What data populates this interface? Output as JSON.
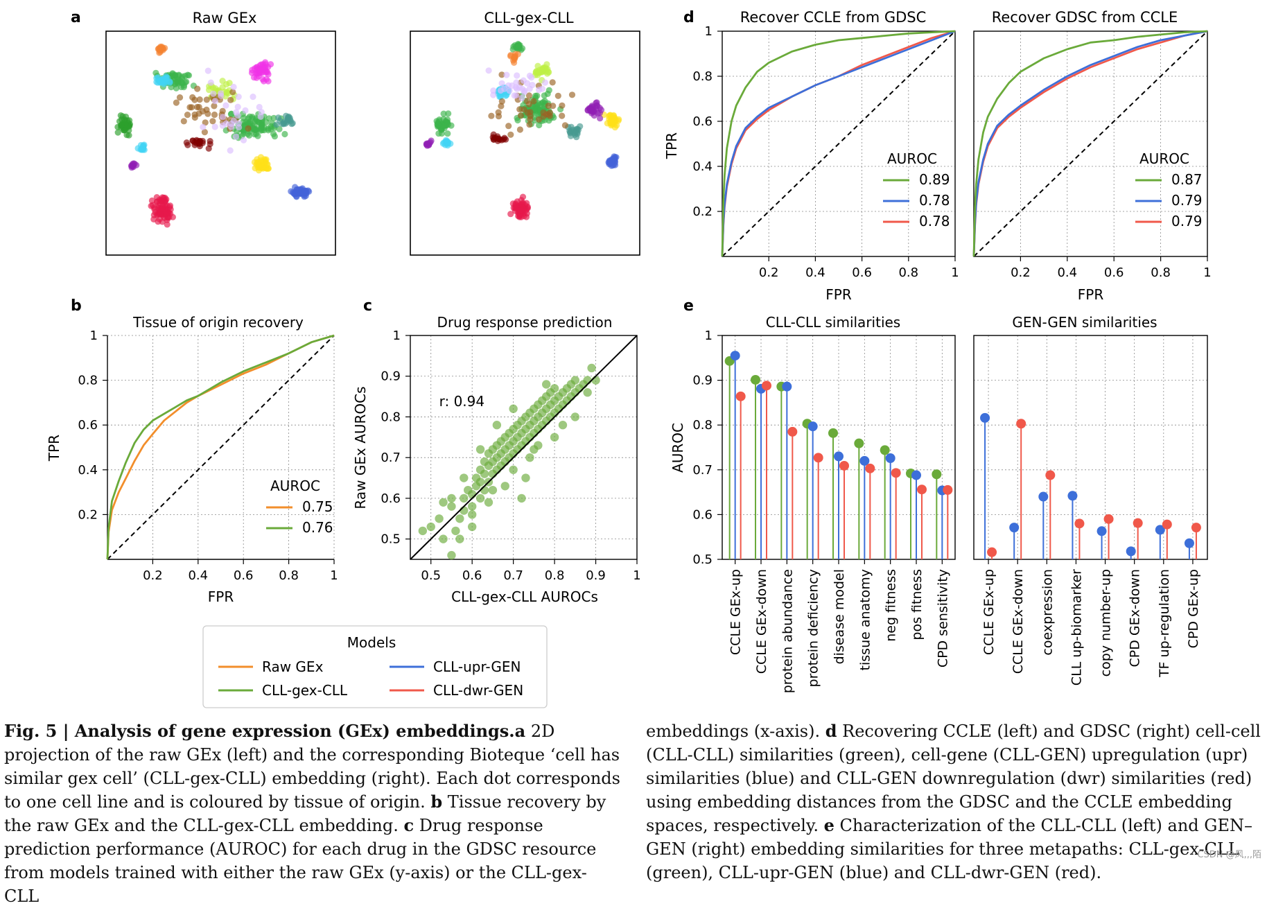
{
  "colors": {
    "raw": "#f28e2b",
    "cll": "#6aaa3a",
    "upr": "#3d6fd9",
    "dwr": "#f0584a",
    "tissue": [
      "#e6194b",
      "#3cb44b",
      "#4363d8",
      "#f58231",
      "#911eb4",
      "#42d4f4",
      "#f032e6",
      "#bfef45",
      "#469990",
      "#9a6324",
      "#ffe119",
      "#800000",
      "#008080",
      "#dcbeff",
      "#000075",
      "#2ca02c"
    ]
  },
  "panel_a": {
    "label": "a",
    "left_title": "Raw GEx",
    "right_title": "CLL-gex-CLL"
  },
  "panel_b": {
    "label": "b",
    "title": "Tissue of origin recovery",
    "xlabel": "FPR",
    "ylabel": "TPR",
    "legend_title": "AUROC",
    "legend": [
      "0.75",
      "0.76"
    ]
  },
  "panel_c": {
    "label": "c",
    "title": "Drug response prediction",
    "xlabel": "CLL-gex-CLL AUROCs",
    "ylabel": "Raw GEx AUROCs",
    "annotation": "r: 0.94"
  },
  "panel_d": {
    "label": "d",
    "left_title": "Recover CCLE from GDSC",
    "right_title": "Recover GDSC from CCLE",
    "xlabel": "FPR",
    "ylabel": "TPR",
    "legend_title": "AUROC",
    "left_legend": [
      "0.89",
      "0.78",
      "0.78"
    ],
    "right_legend": [
      "0.87",
      "0.79",
      "0.79"
    ]
  },
  "panel_e": {
    "label": "e",
    "left_title": "CLL-CLL similarities",
    "right_title": "GEN-GEN similarities",
    "ylabel": "AUROC"
  },
  "models_legend": {
    "title": "Models",
    "items": [
      "Raw GEx",
      "CLL-gex-CLL",
      "CLL-upr-GEN",
      "CLL-dwr-GEN"
    ]
  },
  "chart_data": [
    {
      "type": "scatter",
      "name": "Raw GEx projection",
      "title": "Raw GEx",
      "description": "2D projection, points coloured by tissue of origin; axes unlabeled"
    },
    {
      "type": "scatter",
      "name": "CLL-gex-CLL projection",
      "title": "CLL-gex-CLL"
    },
    {
      "type": "line",
      "title": "Tissue of origin recovery",
      "xlabel": "FPR",
      "ylabel": "TPR",
      "xlim": [
        0,
        1
      ],
      "ylim": [
        0,
        1
      ],
      "xticks": [
        "0.2",
        "0.4",
        "0.6",
        "0.8",
        "1"
      ],
      "yticks": [
        "0.2",
        "0.4",
        "0.6",
        "0.8",
        "1"
      ],
      "legend_title": "AUROC",
      "series": [
        {
          "name": "Raw GEx",
          "auroc": "0.75",
          "x": [
            0,
            0.005,
            0.02,
            0.05,
            0.08,
            0.12,
            0.16,
            0.2,
            0.25,
            0.3,
            0.35,
            0.4,
            0.5,
            0.6,
            0.7,
            0.8,
            0.9,
            1
          ],
          "y": [
            0,
            0.12,
            0.22,
            0.3,
            0.36,
            0.44,
            0.51,
            0.56,
            0.62,
            0.66,
            0.7,
            0.73,
            0.78,
            0.83,
            0.87,
            0.92,
            0.97,
            1
          ]
        },
        {
          "name": "CLL-gex-CLL",
          "auroc": "0.76",
          "x": [
            0,
            0.005,
            0.02,
            0.05,
            0.08,
            0.12,
            0.16,
            0.2,
            0.25,
            0.3,
            0.35,
            0.4,
            0.5,
            0.6,
            0.7,
            0.8,
            0.9,
            1
          ],
          "y": [
            0,
            0.14,
            0.26,
            0.35,
            0.43,
            0.52,
            0.58,
            0.62,
            0.65,
            0.68,
            0.71,
            0.73,
            0.79,
            0.84,
            0.88,
            0.92,
            0.97,
            1
          ]
        }
      ]
    },
    {
      "type": "scatter",
      "title": "Drug response prediction",
      "xlabel": "CLL-gex-CLL AUROCs",
      "ylabel": "Raw GEx AUROCs",
      "xlim": [
        0.45,
        1.0
      ],
      "ylim": [
        0.45,
        1.0
      ],
      "xticks": [
        "0.5",
        "0.6",
        "0.7",
        "0.8",
        "0.9",
        "1"
      ],
      "yticks": [
        "0.5",
        "0.6",
        "0.7",
        "0.8",
        "0.9",
        "1"
      ],
      "annotation": "r: 0.94",
      "identity_line": true,
      "points": [
        [
          0.48,
          0.52
        ],
        [
          0.5,
          0.53
        ],
        [
          0.52,
          0.55
        ],
        [
          0.53,
          0.5
        ],
        [
          0.55,
          0.46
        ],
        [
          0.55,
          0.58
        ],
        [
          0.56,
          0.52
        ],
        [
          0.57,
          0.55
        ],
        [
          0.58,
          0.6
        ],
        [
          0.58,
          0.57
        ],
        [
          0.59,
          0.62
        ],
        [
          0.6,
          0.58
        ],
        [
          0.6,
          0.61
        ],
        [
          0.61,
          0.63
        ],
        [
          0.61,
          0.65
        ],
        [
          0.62,
          0.6
        ],
        [
          0.62,
          0.64
        ],
        [
          0.62,
          0.67
        ],
        [
          0.63,
          0.62
        ],
        [
          0.63,
          0.66
        ],
        [
          0.63,
          0.69
        ],
        [
          0.64,
          0.64
        ],
        [
          0.64,
          0.68
        ],
        [
          0.64,
          0.71
        ],
        [
          0.65,
          0.66
        ],
        [
          0.65,
          0.69
        ],
        [
          0.65,
          0.72
        ],
        [
          0.66,
          0.67
        ],
        [
          0.66,
          0.7
        ],
        [
          0.66,
          0.73
        ],
        [
          0.67,
          0.68
        ],
        [
          0.67,
          0.71
        ],
        [
          0.67,
          0.74
        ],
        [
          0.68,
          0.69
        ],
        [
          0.68,
          0.72
        ],
        [
          0.68,
          0.75
        ],
        [
          0.69,
          0.7
        ],
        [
          0.69,
          0.73
        ],
        [
          0.69,
          0.76
        ],
        [
          0.7,
          0.71
        ],
        [
          0.7,
          0.74
        ],
        [
          0.7,
          0.77
        ],
        [
          0.71,
          0.72
        ],
        [
          0.71,
          0.75
        ],
        [
          0.71,
          0.78
        ],
        [
          0.72,
          0.73
        ],
        [
          0.72,
          0.76
        ],
        [
          0.72,
          0.79
        ],
        [
          0.73,
          0.74
        ],
        [
          0.73,
          0.77
        ],
        [
          0.73,
          0.8
        ],
        [
          0.74,
          0.75
        ],
        [
          0.74,
          0.78
        ],
        [
          0.74,
          0.81
        ],
        [
          0.75,
          0.76
        ],
        [
          0.75,
          0.79
        ],
        [
          0.75,
          0.82
        ],
        [
          0.76,
          0.77
        ],
        [
          0.76,
          0.8
        ],
        [
          0.76,
          0.83
        ],
        [
          0.77,
          0.78
        ],
        [
          0.77,
          0.81
        ],
        [
          0.77,
          0.84
        ],
        [
          0.78,
          0.79
        ],
        [
          0.78,
          0.82
        ],
        [
          0.78,
          0.85
        ],
        [
          0.79,
          0.8
        ],
        [
          0.79,
          0.83
        ],
        [
          0.79,
          0.86
        ],
        [
          0.8,
          0.81
        ],
        [
          0.8,
          0.84
        ],
        [
          0.8,
          0.87
        ],
        [
          0.81,
          0.82
        ],
        [
          0.81,
          0.85
        ],
        [
          0.82,
          0.83
        ],
        [
          0.82,
          0.86
        ],
        [
          0.83,
          0.84
        ],
        [
          0.83,
          0.87
        ],
        [
          0.84,
          0.85
        ],
        [
          0.84,
          0.88
        ],
        [
          0.85,
          0.86
        ],
        [
          0.85,
          0.89
        ],
        [
          0.86,
          0.87
        ],
        [
          0.87,
          0.88
        ],
        [
          0.88,
          0.89
        ],
        [
          0.89,
          0.92
        ],
        [
          0.9,
          0.89
        ],
        [
          0.73,
          0.65
        ],
        [
          0.72,
          0.6
        ],
        [
          0.55,
          0.6
        ],
        [
          0.6,
          0.56
        ],
        [
          0.65,
          0.62
        ],
        [
          0.7,
          0.67
        ],
        [
          0.75,
          0.72
        ],
        [
          0.8,
          0.75
        ],
        [
          0.78,
          0.88
        ],
        [
          0.7,
          0.82
        ],
        [
          0.66,
          0.78
        ],
        [
          0.62,
          0.72
        ],
        [
          0.58,
          0.65
        ],
        [
          0.53,
          0.59
        ],
        [
          0.68,
          0.63
        ],
        [
          0.76,
          0.73
        ],
        [
          0.85,
          0.8
        ],
        [
          0.88,
          0.86
        ],
        [
          0.82,
          0.78
        ],
        [
          0.74,
          0.7
        ],
        [
          0.64,
          0.59
        ],
        [
          0.6,
          0.53
        ],
        [
          0.57,
          0.5
        ]
      ]
    },
    {
      "type": "line",
      "title": "Recover CCLE from GDSC",
      "xlabel": "FPR",
      "ylabel": "TPR",
      "xlim": [
        0,
        1
      ],
      "ylim": [
        0,
        1
      ],
      "legend_title": "AUROC",
      "series": [
        {
          "name": "CLL-gex-CLL",
          "auroc": "0.89",
          "x": [
            0,
            0.005,
            0.01,
            0.02,
            0.04,
            0.06,
            0.1,
            0.15,
            0.2,
            0.3,
            0.4,
            0.5,
            0.6,
            0.7,
            0.8,
            0.9,
            1
          ],
          "y": [
            0,
            0.25,
            0.36,
            0.48,
            0.6,
            0.67,
            0.75,
            0.82,
            0.86,
            0.91,
            0.94,
            0.96,
            0.97,
            0.98,
            0.99,
            0.995,
            1
          ]
        },
        {
          "name": "CLL-upr-GEN",
          "auroc": "0.78",
          "x": [
            0,
            0.005,
            0.01,
            0.02,
            0.04,
            0.06,
            0.1,
            0.15,
            0.2,
            0.3,
            0.4,
            0.5,
            0.6,
            0.7,
            0.8,
            0.9,
            1
          ],
          "y": [
            0,
            0.15,
            0.23,
            0.32,
            0.42,
            0.49,
            0.57,
            0.62,
            0.66,
            0.71,
            0.76,
            0.8,
            0.84,
            0.88,
            0.92,
            0.96,
            1
          ]
        },
        {
          "name": "CLL-dwr-GEN",
          "auroc": "0.78",
          "x": [
            0,
            0.005,
            0.01,
            0.02,
            0.04,
            0.06,
            0.1,
            0.15,
            0.2,
            0.3,
            0.4,
            0.5,
            0.6,
            0.7,
            0.8,
            0.9,
            1
          ],
          "y": [
            0,
            0.14,
            0.22,
            0.31,
            0.41,
            0.48,
            0.56,
            0.61,
            0.65,
            0.71,
            0.76,
            0.8,
            0.85,
            0.89,
            0.93,
            0.97,
            1
          ]
        }
      ]
    },
    {
      "type": "line",
      "title": "Recover GDSC from CCLE",
      "xlabel": "FPR",
      "ylabel": "TPR",
      "xlim": [
        0,
        1
      ],
      "ylim": [
        0,
        1
      ],
      "legend_title": "AUROC",
      "series": [
        {
          "name": "CLL-gex-CLL",
          "auroc": "0.87",
          "x": [
            0,
            0.005,
            0.01,
            0.02,
            0.04,
            0.06,
            0.1,
            0.15,
            0.2,
            0.3,
            0.4,
            0.5,
            0.6,
            0.7,
            0.8,
            0.9,
            1
          ],
          "y": [
            0,
            0.22,
            0.32,
            0.43,
            0.55,
            0.62,
            0.7,
            0.77,
            0.82,
            0.88,
            0.92,
            0.95,
            0.96,
            0.975,
            0.985,
            0.995,
            1
          ]
        },
        {
          "name": "CLL-upr-GEN",
          "auroc": "0.79",
          "x": [
            0,
            0.005,
            0.01,
            0.02,
            0.04,
            0.06,
            0.1,
            0.15,
            0.2,
            0.3,
            0.4,
            0.5,
            0.6,
            0.7,
            0.8,
            0.9,
            1
          ],
          "y": [
            0,
            0.15,
            0.24,
            0.33,
            0.43,
            0.5,
            0.58,
            0.63,
            0.67,
            0.74,
            0.8,
            0.85,
            0.89,
            0.93,
            0.96,
            0.98,
            1
          ]
        },
        {
          "name": "CLL-dwr-GEN",
          "auroc": "0.79",
          "x": [
            0,
            0.005,
            0.01,
            0.02,
            0.04,
            0.06,
            0.1,
            0.15,
            0.2,
            0.3,
            0.4,
            0.5,
            0.6,
            0.7,
            0.8,
            0.9,
            1
          ],
          "y": [
            0,
            0.14,
            0.23,
            0.32,
            0.42,
            0.49,
            0.57,
            0.62,
            0.66,
            0.73,
            0.79,
            0.84,
            0.88,
            0.92,
            0.95,
            0.98,
            1
          ]
        }
      ]
    },
    {
      "type": "bar",
      "subtype": "lollipop",
      "title": "CLL-CLL similarities",
      "ylabel": "AUROC",
      "ylim": [
        0.5,
        1.0
      ],
      "categories": [
        "CCLE GEx-up",
        "CCLE GEx-down",
        "protein abundance",
        "protein deficiency",
        "disease model",
        "tissue anatomy",
        "neg fitness",
        "pos fitness",
        "CPD sensitivity"
      ],
      "series": [
        {
          "name": "CLL-gex-CLL",
          "values": [
            0.943,
            0.901,
            0.886,
            0.803,
            0.782,
            0.759,
            0.744,
            0.692,
            0.69
          ]
        },
        {
          "name": "CLL-upr-GEN",
          "values": [
            0.955,
            0.881,
            0.886,
            0.797,
            0.73,
            0.72,
            0.726,
            0.688,
            0.654
          ]
        },
        {
          "name": "CLL-dwr-GEN",
          "values": [
            0.864,
            0.888,
            0.785,
            0.727,
            0.709,
            0.703,
            0.693,
            0.656,
            0.655
          ]
        }
      ]
    },
    {
      "type": "bar",
      "subtype": "lollipop",
      "title": "GEN-GEN similarities",
      "ylabel": "AUROC",
      "ylim": [
        0.5,
        1.0
      ],
      "categories": [
        "CCLE GEx-up",
        "CCLE GEx-down",
        "coexpression",
        "CLL up-biomarker",
        "copy number-up",
        "CPD GEx-down",
        "TF up-regulation",
        "CPD GEx-up"
      ],
      "series": [
        {
          "name": "CLL-upr-GEN",
          "values": [
            0.816,
            0.571,
            0.64,
            0.642,
            0.563,
            0.518,
            0.566,
            0.536
          ]
        },
        {
          "name": "CLL-dwr-GEN",
          "values": [
            0.516,
            0.803,
            0.688,
            0.58,
            0.59,
            0.581,
            0.578,
            0.571
          ]
        }
      ]
    }
  ],
  "caption_left": {
    "fig": "Fig. 5 | Analysis of gene expression (GEx) embeddings.",
    "a_label": "a",
    "a_text": " 2D projection of the raw GEx (left) and the corresponding Bioteque ‘cell has similar gex cell’ (CLL-gex-CLL) embedding (right). Each dot corresponds to one cell line and is coloured by tissue of origin. ",
    "b_label": "b",
    "b_text": " Tissue recovery by the raw GEx and the CLL-gex-CLL embedding. ",
    "c_label": "c",
    "c_text": " Drug response prediction performance (AUROC) for each drug in the GDSC resource from models trained with either the raw GEx (y-axis) or the CLL-gex-CLL"
  },
  "caption_right": {
    "text1": "embeddings (x-axis). ",
    "d_label": "d",
    "d_text": " Recovering CCLE (left) and GDSC (right) cell-cell (CLL-CLL) similarities (green), cell-gene (CLL-GEN) upregulation (upr) similarities (blue) and CLL-GEN downregulation (dwr) similarities (red) using embedding distances from the GDSC and the CCLE embedding spaces, respectively. ",
    "e_label": "e",
    "e_text": " Characterization of the CLL-CLL (left) and GEN–GEN (right) embedding similarities for three metapaths: CLL-gex-CLL (green), CLL-upr-GEN (blue) and CLL-dwr-GEN (red)."
  },
  "watermark": "CSDN @风,,,陌"
}
